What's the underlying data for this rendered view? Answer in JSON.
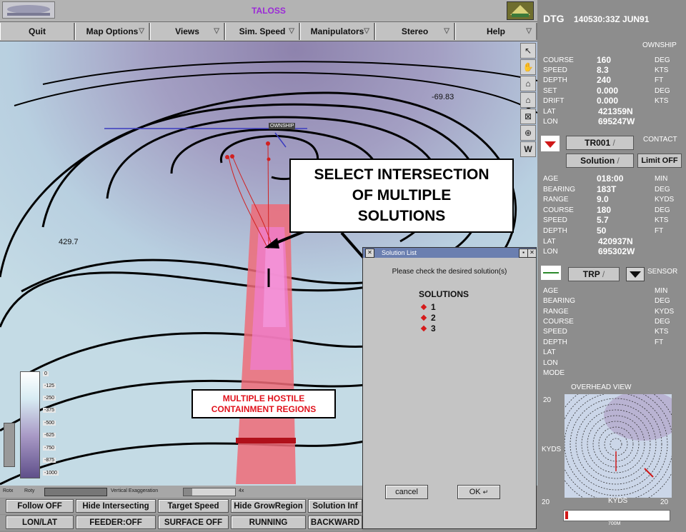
{
  "window": {
    "title": "TALOSS"
  },
  "menu": [
    {
      "label": "Quit",
      "arrow": false
    },
    {
      "label": "Map Options",
      "arrow": true
    },
    {
      "label": "Views",
      "arrow": true
    },
    {
      "label": "Sim. Speed",
      "arrow": true
    },
    {
      "label": "Manipulators",
      "arrow": true
    },
    {
      "label": "Stereo",
      "arrow": true
    },
    {
      "label": "Help",
      "arrow": true
    }
  ],
  "map": {
    "labels": {
      "contour_a": "-69.83",
      "contour_b": "429.7",
      "ownship_tag": "OWNSHIP"
    },
    "legend": [
      "0",
      "-125",
      "-250",
      "-375",
      "-500",
      "-625",
      "-750",
      "-875",
      "-1000"
    ],
    "rot_bar": {
      "rotx": "Rotx",
      "roty": "Roty",
      "vert_exag": "Vertical Exaggeration",
      "value": "4x"
    }
  },
  "callouts": {
    "select": [
      "SELECT INTERSECTION",
      "OF  MULTIPLE",
      "SOLUTIONS"
    ],
    "hostile": [
      "MULTIPLE HOSTILE",
      "CONTAINMENT REGIONS"
    ]
  },
  "dialog": {
    "title": "Solution List",
    "prompt": "Please check the desired solution(s)",
    "heading": "SOLUTIONS",
    "items": [
      "1",
      "2",
      "3"
    ],
    "cancel": "cancel",
    "ok": "OK"
  },
  "bottom": {
    "row1": [
      "Follow OFF",
      "Hide Intersecting",
      "Target Speed",
      "Hide GrowRegion",
      "Solution Inf"
    ],
    "row2": [
      "LON/LAT",
      "FEEDER:OFF",
      "SURFACE OFF",
      "RUNNING",
      "BACKWARD"
    ]
  },
  "panel": {
    "dtg_label": "DTG",
    "dtg_value": "140530:33Z JUN91",
    "ownship_header": "OWNSHIP",
    "ownship": [
      {
        "label": "COURSE",
        "value": "160",
        "unit": "DEG"
      },
      {
        "label": "SPEED",
        "value": "8.3",
        "unit": "KTS"
      },
      {
        "label": "DEPTH",
        "value": "240",
        "unit": "FT"
      },
      {
        "label": "SET",
        "value": "0.000",
        "unit": "DEG"
      },
      {
        "label": "DRIFT",
        "value": "0.000",
        "unit": "KTS"
      },
      {
        "label": "LAT",
        "value": "421359N",
        "unit": ""
      },
      {
        "label": "LON",
        "value": "695247W",
        "unit": ""
      }
    ],
    "contact_header": "CONTACT",
    "contact_track": "TR001",
    "contact_mode": "Solution",
    "limit_button": "Limit OFF",
    "contact": [
      {
        "label": "AGE",
        "value": "018:00",
        "unit": "MIN"
      },
      {
        "label": "BEARING",
        "value": "183T",
        "unit": "DEG"
      },
      {
        "label": "RANGE",
        "value": "9.0",
        "unit": "KYDS"
      },
      {
        "label": "COURSE",
        "value": "180",
        "unit": "DEG"
      },
      {
        "label": "SPEED",
        "value": "5.7",
        "unit": "KTS"
      },
      {
        "label": "DEPTH",
        "value": "50",
        "unit": "FT"
      },
      {
        "label": "LAT",
        "value": "420937N",
        "unit": ""
      },
      {
        "label": "LON",
        "value": "695302W",
        "unit": ""
      }
    ],
    "sensor_header": "SENSOR",
    "sensor_name": "TRP",
    "sensor": [
      {
        "label": "AGE",
        "unit": "MIN"
      },
      {
        "label": "BEARING",
        "unit": "DEG"
      },
      {
        "label": "RANGE",
        "unit": "KYDS"
      },
      {
        "label": "COURSE",
        "unit": "DEG"
      },
      {
        "label": "SPEED",
        "unit": "KTS"
      },
      {
        "label": "DEPTH",
        "unit": "FT"
      },
      {
        "label": "LAT",
        "unit": ""
      },
      {
        "label": "LON",
        "unit": ""
      },
      {
        "label": "MODE",
        "unit": ""
      }
    ],
    "overhead": {
      "title": "OVERHEAD VIEW",
      "y_top": "20",
      "y_label": "KYDS",
      "x_left": "20",
      "x_label": "KYDS",
      "x_right": "20",
      "scale": "700M"
    }
  },
  "colors": {
    "accent": "#9b2bd6",
    "hostile": "#e0121c",
    "map_bg": "#c4dbe5",
    "panel": "#8d8d8d"
  }
}
